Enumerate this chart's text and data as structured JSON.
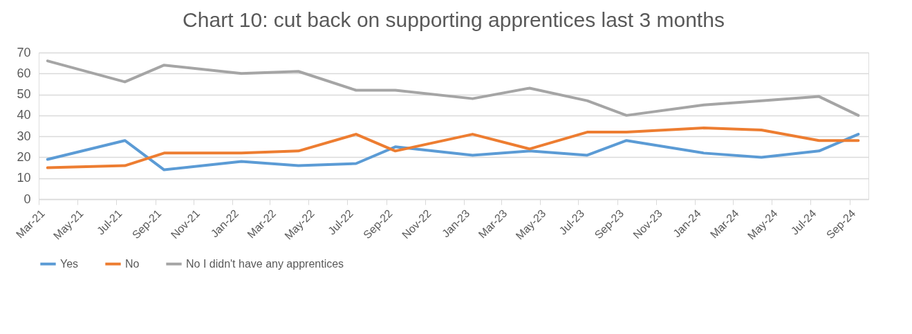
{
  "chart_data": {
    "type": "line",
    "title": "Chart 10: cut back on supporting apprentices last 3 months",
    "x": [
      "2021-03-15",
      "2021-07-15",
      "2021-09-15",
      "2022-01-15",
      "2022-04-15",
      "2022-07-15",
      "2022-09-15",
      "2023-01-15",
      "2023-04-15",
      "2023-07-15",
      "2023-09-15",
      "2024-01-15",
      "2024-04-15",
      "2024-07-15",
      "2024-09-15"
    ],
    "series": [
      {
        "name": "Yes",
        "color": "#5b9bd5",
        "values": [
          19,
          28,
          14,
          18,
          16,
          17,
          25,
          21,
          23,
          21,
          28,
          22,
          20,
          23,
          31
        ]
      },
      {
        "name": "No",
        "color": "#ed7d31",
        "values": [
          15,
          16,
          22,
          22,
          23,
          31,
          23,
          31,
          24,
          32,
          32,
          34,
          33,
          28,
          28
        ]
      },
      {
        "name": "No I didn't have any apprentices",
        "color": "#a5a5a5",
        "values": [
          66,
          56,
          64,
          60,
          61,
          52,
          52,
          48,
          53,
          47,
          40,
          45,
          47,
          49,
          40
        ]
      }
    ],
    "xlim": [
      "2021-03-01",
      "2024-10-01"
    ],
    "xticks": [
      {
        "value": "2021-03",
        "label": "Mar-21"
      },
      {
        "value": "2021-05",
        "label": "May-21"
      },
      {
        "value": "2021-07",
        "label": "Jul-21"
      },
      {
        "value": "2021-09",
        "label": "Sep-21"
      },
      {
        "value": "2021-11",
        "label": "Nov-21"
      },
      {
        "value": "2022-01",
        "label": "Jan-22"
      },
      {
        "value": "2022-03",
        "label": "Mar-22"
      },
      {
        "value": "2022-05",
        "label": "May-22"
      },
      {
        "value": "2022-07",
        "label": "Jul-22"
      },
      {
        "value": "2022-09",
        "label": "Sep-22"
      },
      {
        "value": "2022-11",
        "label": "Nov-22"
      },
      {
        "value": "2023-01",
        "label": "Jan-23"
      },
      {
        "value": "2023-03",
        "label": "Mar-23"
      },
      {
        "value": "2023-05",
        "label": "May-23"
      },
      {
        "value": "2023-07",
        "label": "Jul-23"
      },
      {
        "value": "2023-09",
        "label": "Sep-23"
      },
      {
        "value": "2023-11",
        "label": "Nov-23"
      },
      {
        "value": "2024-01",
        "label": "Jan-24"
      },
      {
        "value": "2024-03",
        "label": "Mar-24"
      },
      {
        "value": "2024-05",
        "label": "May-24"
      },
      {
        "value": "2024-07",
        "label": "Jul-24"
      },
      {
        "value": "2024-09",
        "label": "Sep-24"
      }
    ],
    "ylim": [
      0,
      70
    ],
    "yticks": [
      0,
      10,
      20,
      30,
      40,
      50,
      60,
      70
    ],
    "grid": "y",
    "legend": "bottom",
    "marker": "none",
    "line_style": "solid"
  }
}
